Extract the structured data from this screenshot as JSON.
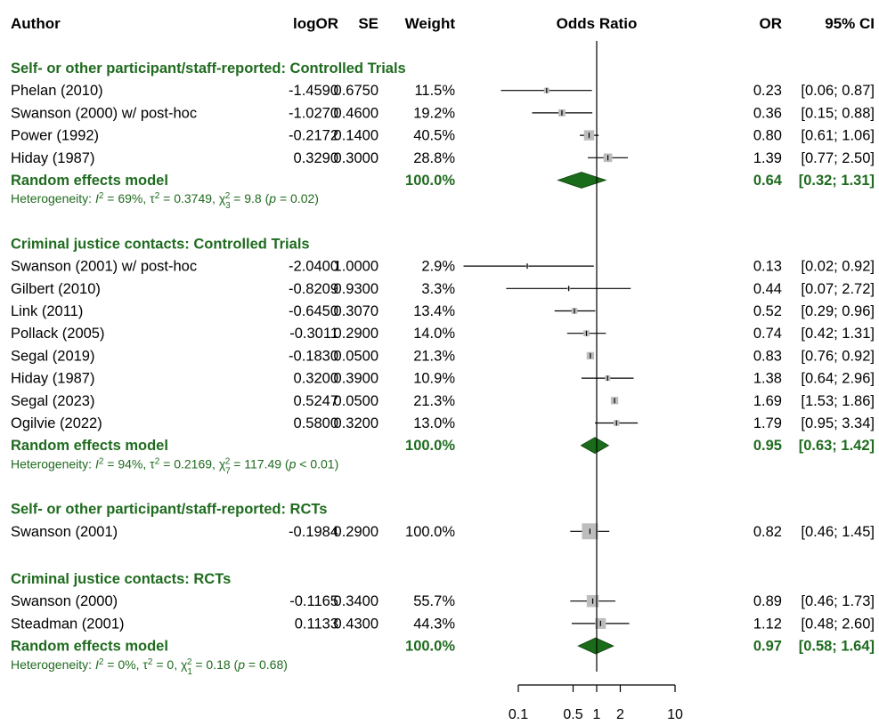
{
  "chart_data": {
    "type": "forest",
    "columns": [
      "Author",
      "logOR",
      "SE",
      "Weight",
      "Odds Ratio",
      "OR",
      "95% CI"
    ],
    "x_axis": {
      "scale": "log",
      "xlim": [
        0.05,
        10
      ],
      "ticks": [
        0.1,
        0.5,
        1,
        2,
        10
      ],
      "tick_labels": [
        "0.1",
        "0.5",
        "1",
        "2",
        "10"
      ],
      "reference_line": 1
    },
    "groups": [
      {
        "title": "Self- or other participant/staff-reported: Controlled Trials",
        "studies": [
          {
            "author": "Phelan (2010)",
            "logOR": "-1.4590",
            "se": "0.6750",
            "weight": "11.5%",
            "or": "0.23",
            "ci": "[0.06; 0.87]",
            "or_val": 0.23,
            "lo": 0.06,
            "hi": 0.87,
            "w": 11.5
          },
          {
            "author": "Swanson (2000) w/ post-hoc",
            "logOR": "-1.0270",
            "se": "0.4600",
            "weight": "19.2%",
            "or": "0.36",
            "ci": "[0.15; 0.88]",
            "or_val": 0.36,
            "lo": 0.15,
            "hi": 0.88,
            "w": 19.2
          },
          {
            "author": "Power (1992)",
            "logOR": "-0.2172",
            "se": "0.1400",
            "weight": "40.5%",
            "or": "0.80",
            "ci": "[0.61; 1.06]",
            "or_val": 0.8,
            "lo": 0.61,
            "hi": 1.06,
            "w": 40.5
          },
          {
            "author": "Hiday (1987)",
            "logOR": "0.3290",
            "se": "0.3000",
            "weight": "28.8%",
            "or": "1.39",
            "ci": "[0.77; 2.50]",
            "or_val": 1.39,
            "lo": 0.77,
            "hi": 2.5,
            "w": 28.8
          }
        ],
        "model": {
          "label": "Random effects model",
          "weight": "100.0%",
          "or": "0.64",
          "ci": "[0.32; 1.31]",
          "or_val": 0.64,
          "lo": 0.32,
          "hi": 1.31
        },
        "heterogeneity": {
          "i2": "69%",
          "tau2": "0.3749",
          "df": "3",
          "chi2": "9.8",
          "p": "p = 0.02"
        }
      },
      {
        "title": "Criminal justice contacts: Controlled Trials",
        "studies": [
          {
            "author": "Swanson (2001) w/ post-hoc",
            "logOR": "-2.0400",
            "se": "1.0000",
            "weight": "2.9%",
            "or": "0.13",
            "ci": "[0.02; 0.92]",
            "or_val": 0.13,
            "lo": 0.02,
            "hi": 0.92,
            "w": 2.9
          },
          {
            "author": "Gilbert (2010)",
            "logOR": "-0.8209",
            "se": "0.9300",
            "weight": "3.3%",
            "or": "0.44",
            "ci": "[0.07; 2.72]",
            "or_val": 0.44,
            "lo": 0.07,
            "hi": 2.72,
            "w": 3.3
          },
          {
            "author": "Link (2011)",
            "logOR": "-0.6450",
            "se": "0.3070",
            "weight": "13.4%",
            "or": "0.52",
            "ci": "[0.29; 0.96]",
            "or_val": 0.52,
            "lo": 0.29,
            "hi": 0.96,
            "w": 13.4
          },
          {
            "author": "Pollack (2005)",
            "logOR": "-0.3011",
            "se": "0.2900",
            "weight": "14.0%",
            "or": "0.74",
            "ci": "[0.42; 1.31]",
            "or_val": 0.74,
            "lo": 0.42,
            "hi": 1.31,
            "w": 14.0
          },
          {
            "author": "Segal (2019)",
            "logOR": "-0.1830",
            "se": "0.0500",
            "weight": "21.3%",
            "or": "0.83",
            "ci": "[0.76; 0.92]",
            "or_val": 0.83,
            "lo": 0.76,
            "hi": 0.92,
            "w": 21.3
          },
          {
            "author": "Hiday (1987)",
            "logOR": "0.3200",
            "se": "0.3900",
            "weight": "10.9%",
            "or": "1.38",
            "ci": "[0.64; 2.96]",
            "or_val": 1.38,
            "lo": 0.64,
            "hi": 2.96,
            "w": 10.9
          },
          {
            "author": "Segal (2023)",
            "logOR": "0.5247",
            "se": "0.0500",
            "weight": "21.3%",
            "or": "1.69",
            "ci": "[1.53; 1.86]",
            "or_val": 1.69,
            "lo": 1.53,
            "hi": 1.86,
            "w": 21.3
          },
          {
            "author": "Ogilvie (2022)",
            "logOR": "0.5800",
            "se": "0.3200",
            "weight": "13.0%",
            "or": "1.79",
            "ci": "[0.95; 3.34]",
            "or_val": 1.79,
            "lo": 0.95,
            "hi": 3.34,
            "w": 13.0
          }
        ],
        "model": {
          "label": "Random effects model",
          "weight": "100.0%",
          "or": "0.95",
          "ci": "[0.63; 1.42]",
          "or_val": 0.95,
          "lo": 0.63,
          "hi": 1.42
        },
        "heterogeneity": {
          "i2": "94%",
          "tau2": "0.2169",
          "df": "7",
          "chi2": "117.49",
          "p": "p < 0.01"
        }
      },
      {
        "title": "Self- or other participant/staff-reported: RCTs",
        "studies": [
          {
            "author": "Swanson (2001)",
            "logOR": "-0.1984",
            "se": "0.2900",
            "weight": "100.0%",
            "or": "0.82",
            "ci": "[0.46; 1.45]",
            "or_val": 0.82,
            "lo": 0.46,
            "hi": 1.45,
            "w": 100.0
          }
        ]
      },
      {
        "title": "Criminal justice contacts: RCTs",
        "studies": [
          {
            "author": "Swanson (2000)",
            "logOR": "-0.1165",
            "se": "0.3400",
            "weight": "55.7%",
            "or": "0.89",
            "ci": "[0.46; 1.73]",
            "or_val": 0.89,
            "lo": 0.46,
            "hi": 1.73,
            "w": 55.7
          },
          {
            "author": "Steadman (2001)",
            "logOR": "0.1133",
            "se": "0.4300",
            "weight": "44.3%",
            "or": "1.12",
            "ci": "[0.48; 2.60]",
            "or_val": 1.12,
            "lo": 0.48,
            "hi": 2.6,
            "w": 44.3
          }
        ],
        "model": {
          "label": "Random effects model",
          "weight": "100.0%",
          "or": "0.97",
          "ci": "[0.58; 1.64]",
          "or_val": 0.97,
          "lo": 0.58,
          "hi": 1.64
        },
        "heterogeneity": {
          "i2": "0%",
          "tau2": "0",
          "df": "1",
          "chi2": "0.18",
          "p": "p = 0.68"
        }
      }
    ],
    "colors": {
      "group_text": "#1f6b1f",
      "diamond": "#1a6b1a",
      "square": "#bdbdbd",
      "line": "#000000"
    }
  }
}
